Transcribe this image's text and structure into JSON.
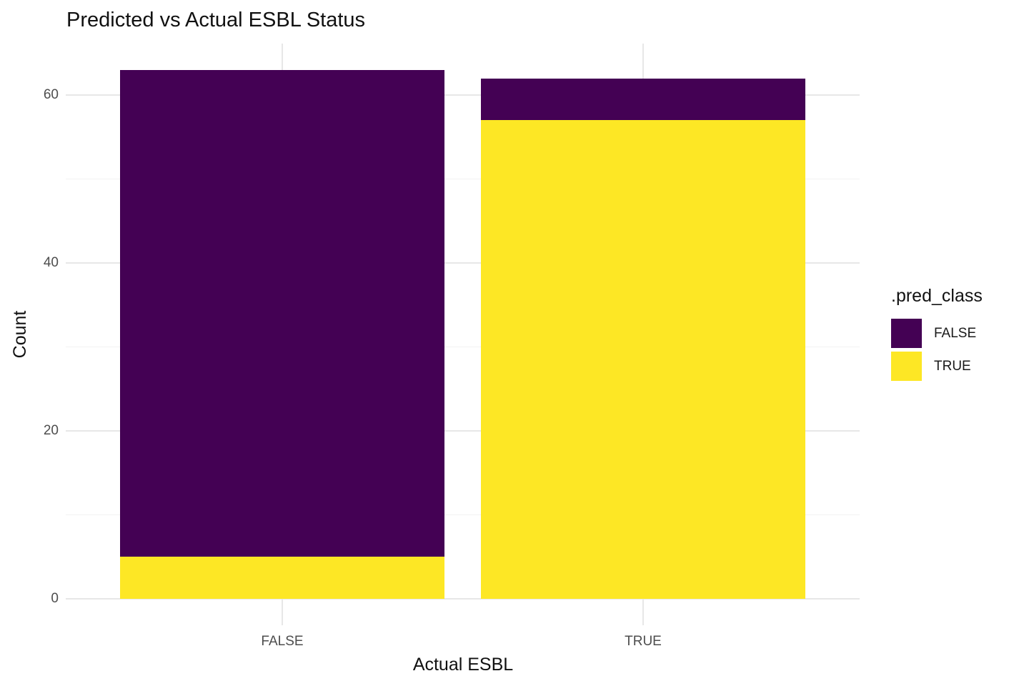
{
  "title": "Predicted vs Actual ESBL Status",
  "axes": {
    "x_title": "Actual ESBL",
    "y_title": "Count",
    "y_tick_labels": [
      0,
      20,
      40,
      60
    ],
    "x_tick_labels": [
      "FALSE",
      "TRUE"
    ]
  },
  "legend": {
    "title": ".pred_class",
    "items": [
      {
        "label": "FALSE",
        "color": "#440154"
      },
      {
        "label": "TRUE",
        "color": "#FDE725"
      }
    ]
  },
  "colors": {
    "pred_false_fill": "#440154",
    "pred_true_fill": "#FDE725",
    "grid_major": "#e7e7e7",
    "grid_minor": "#f2f2f2",
    "axis_text": "#4d4d4d",
    "title_text": "#111111",
    "background": "#ffffff"
  },
  "chart_data": {
    "type": "bar",
    "stacked": true,
    "title": "Predicted vs Actual ESBL Status",
    "xlabel": "Actual ESBL",
    "ylabel": "Count",
    "categories": [
      "FALSE",
      "TRUE"
    ],
    "series": [
      {
        "name": "FALSE",
        "color": "#440154",
        "values": [
          58,
          5
        ]
      },
      {
        "name": "TRUE",
        "color": "#FDE725",
        "values": [
          5,
          57
        ]
      }
    ],
    "stack_order_top_to_bottom": [
      "FALSE",
      "TRUE"
    ],
    "category_totals": [
      63,
      62
    ],
    "ylim": [
      0,
      66
    ],
    "y_major_gridlines": [
      0,
      20,
      40,
      60
    ],
    "y_minor_gridlines": [
      10,
      30,
      50
    ],
    "grid": true,
    "legend_title": ".pred_class",
    "legend_position": "right",
    "legend_entries": [
      "FALSE",
      "TRUE"
    ]
  }
}
